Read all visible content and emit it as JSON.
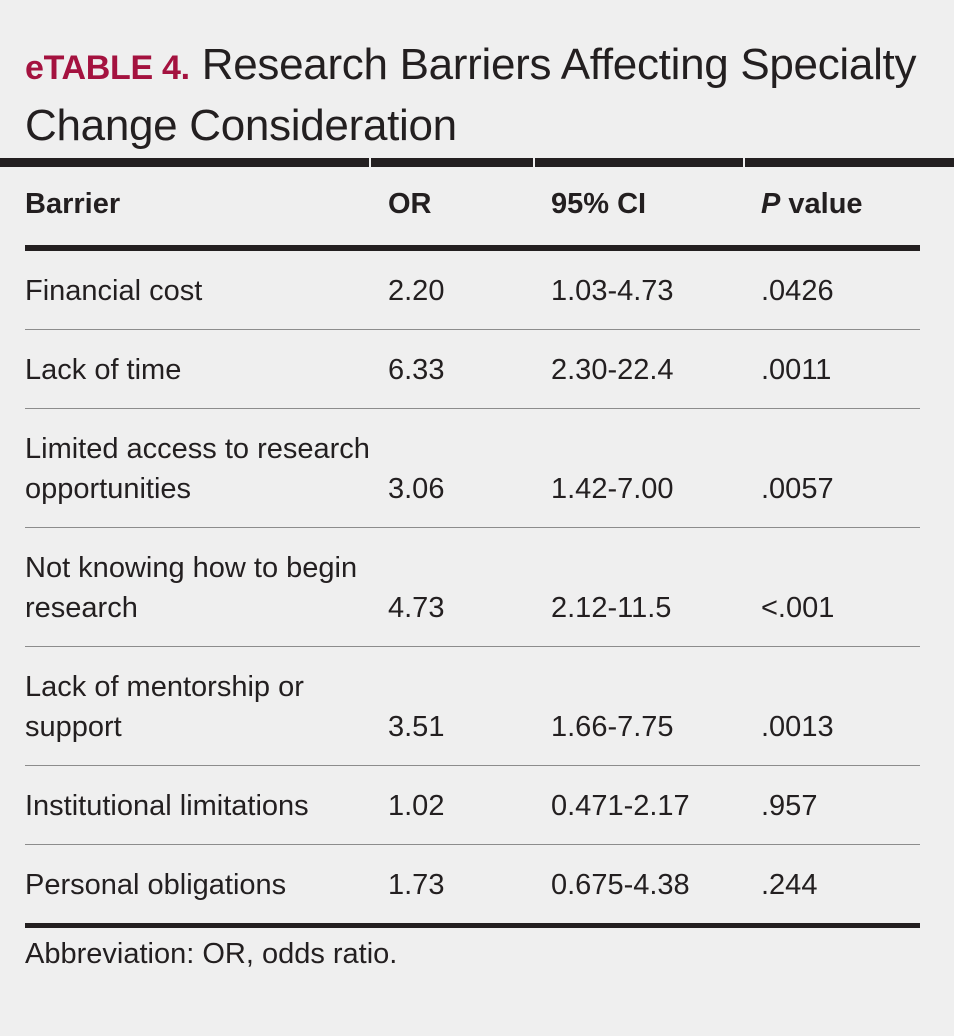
{
  "title": {
    "label": "eTABLE 4.",
    "text": "Research Barriers Affecting Specialty Change Consideration"
  },
  "table": {
    "headers": {
      "barrier": "Barrier",
      "or": "OR",
      "ci": "95% CI",
      "p_italic": "P",
      "p_rest": " value"
    },
    "rows": [
      {
        "barrier": "Financial cost",
        "or": "2.20",
        "ci": "1.03-4.73",
        "p": ".0426"
      },
      {
        "barrier": "Lack of time",
        "or": "6.33",
        "ci": "2.30-22.4",
        "p": ".0011"
      },
      {
        "barrier": "Limited access to research opportunities",
        "or": "3.06",
        "ci": "1.42-7.00",
        "p": ".0057"
      },
      {
        "barrier": "Not knowing how to begin research",
        "or": "4.73",
        "ci": "2.12-11.5",
        "p": "<.001"
      },
      {
        "barrier": "Lack of mentorship or support",
        "or": "3.51",
        "ci": "1.66-7.75",
        "p": ".0013"
      },
      {
        "barrier": "Institutional limitations",
        "or": "1.02",
        "ci": "0.471-2.17",
        "p": ".957"
      },
      {
        "barrier": "Personal obligations",
        "or": "1.73",
        "ci": "0.675-4.38",
        "p": ".244"
      }
    ]
  },
  "footnote": "Abbreviation: OR, odds ratio."
}
